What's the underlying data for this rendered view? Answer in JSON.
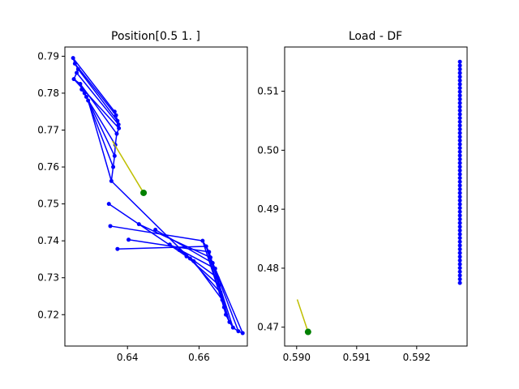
{
  "chart_data": [
    {
      "type": "line",
      "title": "Position[0.5 1. ]",
      "xlabel": "",
      "ylabel": "",
      "xlim": [
        0.6225,
        0.6735
      ],
      "ylim": [
        0.7115,
        0.7925
      ],
      "xticks": [
        {
          "v": 0.64,
          "label": "0.64"
        },
        {
          "v": 0.66,
          "label": "0.66"
        }
      ],
      "yticks": [
        {
          "v": 0.72,
          "label": "0.72"
        },
        {
          "v": 0.73,
          "label": "0.73"
        },
        {
          "v": 0.74,
          "label": "0.74"
        },
        {
          "v": 0.75,
          "label": "0.75"
        },
        {
          "v": 0.76,
          "label": "0.76"
        },
        {
          "v": 0.77,
          "label": "0.77"
        },
        {
          "v": 0.78,
          "label": "0.78"
        },
        {
          "v": 0.79,
          "label": "0.79"
        }
      ],
      "series": [
        {
          "color": "#0000ff",
          "x": [
            0.6248,
            0.6253,
            0.6262,
            0.6258,
            0.625,
            0.6268,
            0.6272,
            0.628,
            0.6285,
            0.629,
            0.6364,
            0.6368,
            0.6372,
            0.6375,
            0.6376,
            0.637,
            0.6366,
            0.6364,
            0.636,
            0.6355,
            0.6348,
            0.6352,
            0.6372,
            0.6403,
            0.6432,
            0.6478,
            0.6518,
            0.6545,
            0.6565,
            0.6575,
            0.6585,
            0.661,
            0.662,
            0.6628,
            0.6632,
            0.6638,
            0.6645,
            0.6652,
            0.6656,
            0.666,
            0.6665,
            0.667,
            0.6675,
            0.6685,
            0.6695,
            0.671,
            0.6722
          ],
          "y": [
            0.7895,
            0.788,
            0.7865,
            0.7855,
            0.7838,
            0.7825,
            0.781,
            0.78,
            0.779,
            0.778,
            0.775,
            0.774,
            0.7725,
            0.7715,
            0.7705,
            0.769,
            0.766,
            0.763,
            0.76,
            0.7562,
            0.75,
            0.744,
            0.7378,
            0.7403,
            0.7445,
            0.743,
            0.739,
            0.7375,
            0.7358,
            0.7352,
            0.7345,
            0.74,
            0.7385,
            0.737,
            0.7355,
            0.734,
            0.7325,
            0.73,
            0.728,
            0.726,
            0.724,
            0.722,
            0.72,
            0.718,
            0.7165,
            0.7155,
            0.715
          ],
          "connect": [
            [
              0,
              10
            ],
            [
              1,
              11
            ],
            [
              2,
              12
            ],
            [
              3,
              13
            ],
            [
              4,
              14
            ],
            [
              5,
              15
            ],
            [
              6,
              16
            ],
            [
              7,
              17
            ],
            [
              8,
              18
            ],
            [
              9,
              19
            ],
            [
              19,
              29
            ],
            [
              20,
              30
            ],
            [
              21,
              31
            ],
            [
              22,
              32
            ],
            [
              23,
              33
            ],
            [
              24,
              34
            ],
            [
              25,
              35
            ],
            [
              26,
              36
            ],
            [
              27,
              37
            ],
            [
              28,
              38
            ],
            [
              29,
              39
            ],
            [
              30,
              40
            ],
            [
              31,
              41
            ],
            [
              32,
              42
            ],
            [
              33,
              43
            ],
            [
              34,
              44
            ],
            [
              35,
              45
            ],
            [
              36,
              46
            ],
            [
              0,
              1
            ],
            [
              1,
              2
            ],
            [
              2,
              3
            ],
            [
              3,
              4
            ],
            [
              4,
              5
            ],
            [
              5,
              6
            ],
            [
              6,
              7
            ],
            [
              7,
              8
            ],
            [
              8,
              9
            ],
            [
              10,
              11
            ],
            [
              11,
              12
            ],
            [
              12,
              13
            ],
            [
              13,
              14
            ],
            [
              14,
              15
            ],
            [
              15,
              16
            ],
            [
              16,
              17
            ],
            [
              17,
              18
            ],
            [
              18,
              19
            ],
            [
              31,
              32
            ],
            [
              32,
              33
            ],
            [
              33,
              34
            ],
            [
              34,
              35
            ],
            [
              35,
              36
            ],
            [
              36,
              37
            ],
            [
              37,
              38
            ],
            [
              38,
              39
            ],
            [
              39,
              40
            ],
            [
              40,
              41
            ],
            [
              41,
              42
            ],
            [
              42,
              43
            ],
            [
              43,
              44
            ],
            [
              44,
              45
            ],
            [
              45,
              46
            ]
          ]
        },
        {
          "color": "#bfbf00",
          "x": [
            0.6358,
            0.6445
          ],
          "y": [
            0.767,
            0.753
          ]
        }
      ],
      "marker": {
        "color": "#008000",
        "x": 0.6445,
        "y": 0.753
      }
    },
    {
      "type": "scatter",
      "title": "Load - DF",
      "xlabel": "",
      "ylabel": "",
      "xlim": [
        0.5898,
        0.59284
      ],
      "ylim": [
        0.4668,
        0.5175
      ],
      "xticks": [
        {
          "v": 0.59,
          "label": "0.590"
        },
        {
          "v": 0.591,
          "label": "0.591"
        },
        {
          "v": 0.592,
          "label": "0.592"
        }
      ],
      "yticks": [
        {
          "v": 0.47,
          "label": "0.47"
        },
        {
          "v": 0.48,
          "label": "0.48"
        },
        {
          "v": 0.49,
          "label": "0.49"
        },
        {
          "v": 0.5,
          "label": "0.50"
        },
        {
          "v": 0.51,
          "label": "0.51"
        }
      ],
      "series": [
        {
          "color": "#0000ff",
          "x": [
            0.59272
          ],
          "y_range": [
            0.4775,
            0.515
          ],
          "count": 60
        },
        {
          "color": "#bfbf00",
          "x": [
            0.59001,
            0.59019
          ],
          "y": [
            0.4747,
            0.4692
          ]
        }
      ],
      "marker": {
        "color": "#008000",
        "x": 0.59019,
        "y": 0.4692
      }
    }
  ]
}
